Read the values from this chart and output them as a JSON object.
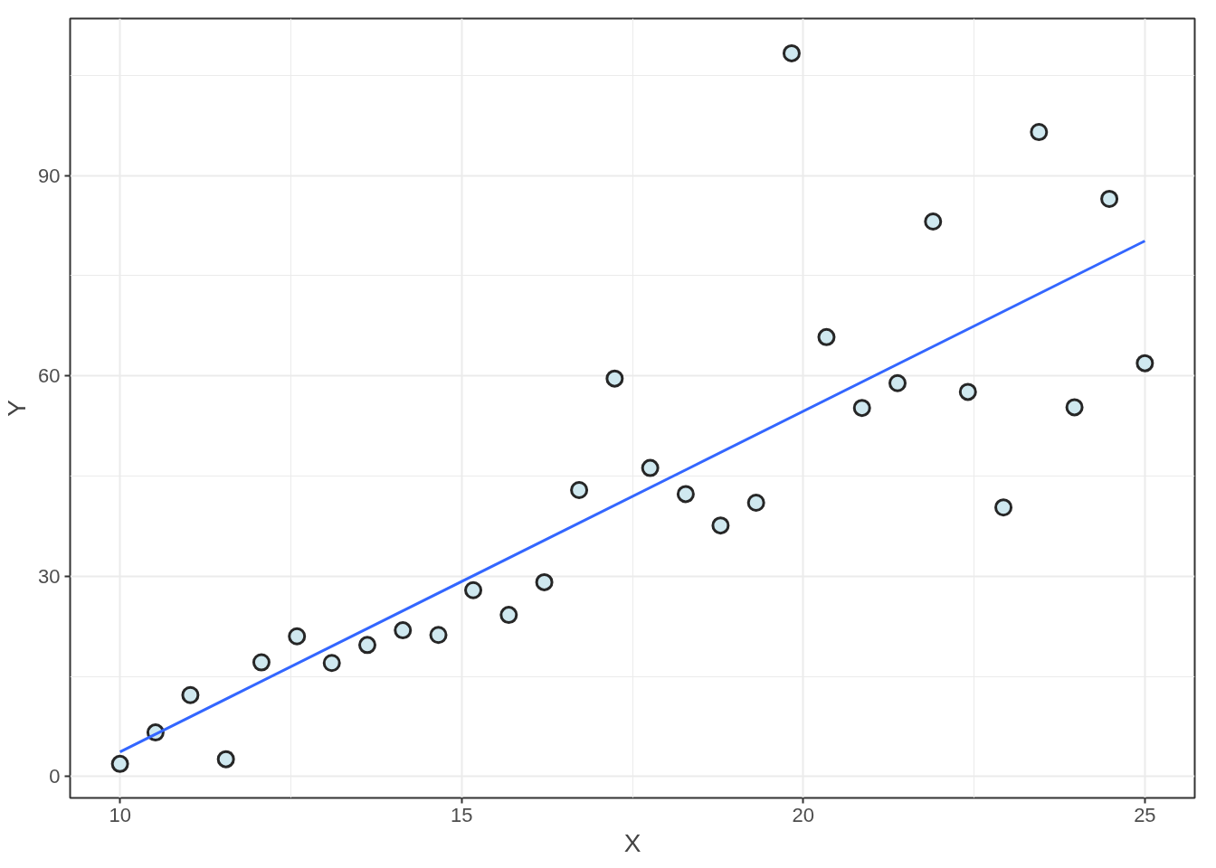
{
  "chart_data": {
    "type": "scatter",
    "xlabel": "X",
    "ylabel": "Y",
    "xlim": [
      9.27,
      25.73
    ],
    "ylim": [
      -3.2,
      113.5
    ],
    "xticks": [
      10,
      15,
      20,
      25
    ],
    "yticks": [
      0,
      30,
      60,
      90
    ],
    "grid": true,
    "series": [
      {
        "color": "#cfe8ef",
        "x": [
          10.0,
          10.52,
          11.03,
          11.55,
          12.07,
          12.59,
          13.1,
          13.62,
          14.14,
          14.66,
          15.17,
          15.69,
          16.21,
          16.72,
          17.24,
          17.76,
          18.28,
          18.79,
          19.31,
          19.83,
          20.34,
          20.86,
          21.38,
          21.9,
          22.41,
          22.93,
          23.45,
          23.97,
          24.48,
          25.0
        ],
        "values": [
          1.9,
          6.6,
          12.2,
          2.6,
          17.1,
          21.0,
          17.0,
          19.7,
          21.9,
          21.2,
          27.9,
          24.2,
          29.1,
          42.9,
          59.6,
          46.2,
          42.3,
          37.6,
          41.0,
          108.3,
          65.8,
          55.2,
          58.9,
          83.1,
          57.6,
          40.3,
          96.5,
          55.3,
          86.5,
          61.9
        ]
      },
      {
        "type": "line",
        "color": "#3366ff",
        "x": [
          10,
          25
        ],
        "values": [
          3.7,
          80.2
        ]
      }
    ]
  }
}
